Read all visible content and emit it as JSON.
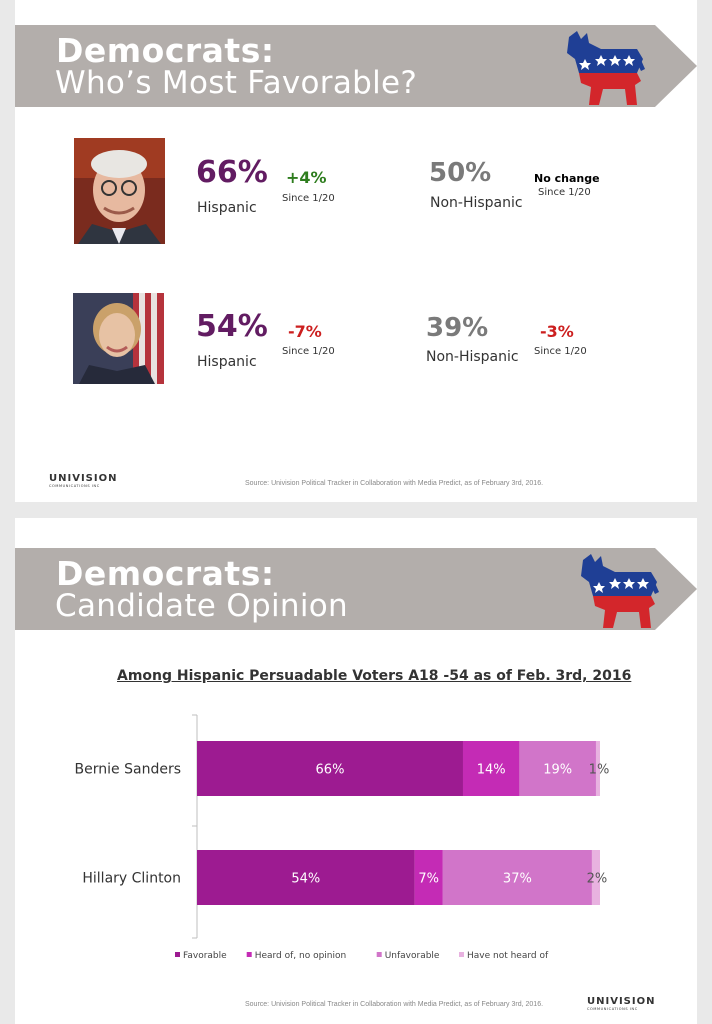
{
  "colors": {
    "banner": "#b3aeab",
    "purple": "#621c62",
    "green": "#2e7d1e",
    "red": "#cc1f1f",
    "grey": "#7a7a7a",
    "favorable": "#9d1b91",
    "heard_no_opinion": "#c42bb5",
    "unfavorable": "#d175c9",
    "not_heard": "#e8b2e0"
  },
  "slide1": {
    "title_bold": "Democrats:",
    "title_light": "Who’s Most Favorable?",
    "icon": "democrat-donkey-icon",
    "candidates": [
      {
        "photo": "bernie-sanders-photo",
        "hispanic_pct": "66%",
        "hispanic_label": "Hispanic",
        "hispanic_change": "+4%",
        "hispanic_since": "Since 1/20",
        "non_hispanic_pct": "50%",
        "non_hispanic_label": "Non-Hispanic",
        "non_hispanic_change": "No change",
        "non_hispanic_since": "Since 1/20"
      },
      {
        "photo": "hillary-clinton-photo",
        "hispanic_pct": "54%",
        "hispanic_label": "Hispanic",
        "hispanic_change": "-7%",
        "hispanic_since": "Since 1/20",
        "non_hispanic_pct": "39%",
        "non_hispanic_label": "Non-Hispanic",
        "non_hispanic_change": "-3%",
        "non_hispanic_since": "Since 1/20"
      }
    ],
    "logo_main": "UNIVISION",
    "logo_sub": "COMMUNICATIONS INC",
    "source": "Source: Univision Political Tracker in Collaboration with Media Predict, as of February 3rd, 2016."
  },
  "slide2": {
    "title_bold": "Democrats:",
    "title_light": "Candidate Opinion",
    "icon": "democrat-donkey-icon",
    "logo_main": "UNIVISION",
    "logo_sub": "COMMUNICATIONS INC",
    "source": "Source: Univision Political Tracker in Collaboration with Media Predict, as of February 3rd, 2016."
  },
  "chart_data": {
    "type": "bar",
    "orientation": "horizontal",
    "stacked": true,
    "title": "Among  Hispanic Persuadable Voters A18 -54 as of Feb. 3rd, 2016",
    "categories": [
      "Bernie Sanders",
      "Hillary Clinton"
    ],
    "series": [
      {
        "name": "Favorable",
        "values": [
          66,
          54
        ],
        "labels": [
          "66%",
          "54%"
        ]
      },
      {
        "name": "Heard of, no opinion",
        "values": [
          14,
          7
        ],
        "labels": [
          "14%",
          "7%"
        ]
      },
      {
        "name": "Unfavorable",
        "values": [
          19,
          37
        ],
        "labels": [
          "19%",
          "37%"
        ]
      },
      {
        "name": "Have not heard of",
        "values": [
          1,
          2
        ],
        "labels": [
          "1%",
          "2%"
        ]
      }
    ],
    "xlim": [
      0,
      100
    ],
    "legend": "bottom",
    "grid": false
  }
}
